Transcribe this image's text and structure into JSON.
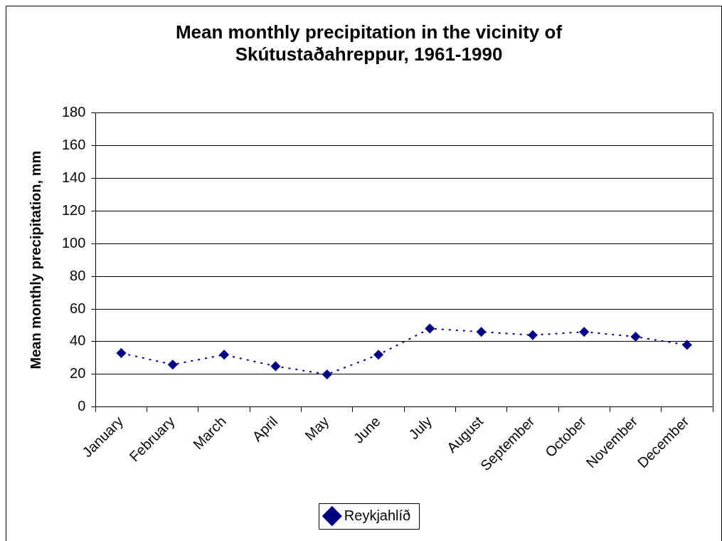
{
  "chart_data": {
    "type": "line",
    "title": "Mean monthly precipitation in the vicinity of Skútustaðahreppur, 1961-1990",
    "ylabel": "Mean monthly precipitation, mm",
    "categories": [
      "January",
      "February",
      "March",
      "April",
      "May",
      "June",
      "July",
      "August",
      "September",
      "October",
      "November",
      "December"
    ],
    "series": [
      {
        "name": "Reykjahlíð",
        "color": "#000080",
        "values": [
          33,
          26,
          32,
          25,
          20,
          32,
          48,
          46,
          44,
          46,
          43,
          38
        ]
      }
    ],
    "ylim": [
      0,
      180
    ],
    "yticks": [
      0,
      20,
      40,
      60,
      80,
      100,
      120,
      140,
      160,
      180
    ],
    "grid": "y",
    "legend": "bottom",
    "marker": "diamond",
    "line_style": "dotted"
  }
}
